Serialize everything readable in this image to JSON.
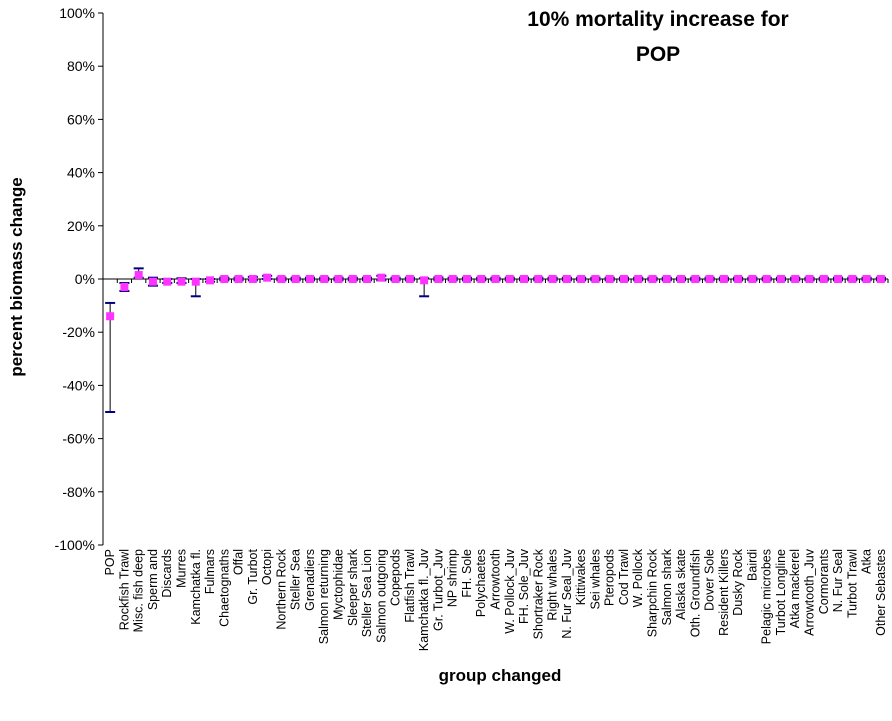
{
  "chart_data": {
    "type": "scatter",
    "title_lines": [
      "10% mortality increase for",
      "POP"
    ],
    "xlabel": "group changed",
    "ylabel": "percent biomass change",
    "ylim": [
      -100,
      100
    ],
    "yticks": [
      "100%",
      "80%",
      "60%",
      "40%",
      "20%",
      "0%",
      "-20%",
      "-40%",
      "-60%",
      "-80%",
      "-100%"
    ],
    "ytick_values": [
      100,
      80,
      60,
      40,
      20,
      0,
      -20,
      -40,
      -60,
      -80,
      -100
    ],
    "grid": false,
    "legend": "none",
    "colors": {
      "marker": "#ff33ff",
      "errorbar": "#000080",
      "axis": "#000000"
    },
    "categories": [
      "POP",
      "Rockfish Trawl",
      "Misc. fish deep",
      "Sperm and",
      "Discards",
      "Murres",
      "Kamchatka fl.",
      "Fulmars",
      "Chaetognaths",
      "Offal",
      "Gr. Turbot",
      "Octopi",
      "Northern Rock",
      "Steller Sea",
      "Grenadiers",
      "Salmon returning",
      "Myctophidae",
      "Sleeper shark",
      "Steller Sea Lion",
      "Salmon outgoing",
      "Copepods",
      "Flatfish Trawl",
      "Kamchatka fl._Juv",
      "Gr. Turbot_Juv",
      "NP shrimp",
      "FH. Sole",
      "Polychaetes",
      "Arrowtooth",
      "W. Pollock_Juv",
      "FH. Sole_Juv",
      "Shortraker Rock",
      "Right whales",
      "N. Fur Seal_Juv",
      "Kittiwakes",
      "Sei whales",
      "Pteropods",
      "Cod Trawl",
      "W. Pollock",
      "Sharpchin Rock",
      "Salmon shark",
      "Alaska skate",
      "Oth. Groundfish",
      "Dover Sole",
      "Resident Killers",
      "Dusky Rock",
      "Bairdi",
      "Pelagic microbes",
      "Turbot Longline",
      "Atka mackerel",
      "Arrowtooth_Juv",
      "Cormorants",
      "N. Fur Seal",
      "Turbot Trawl",
      "Atka",
      "Other Sebastes"
    ],
    "values": [
      -14,
      -3,
      1.5,
      -1,
      -1,
      -1,
      -1,
      -0.5,
      0,
      0,
      0,
      0.5,
      0,
      0,
      0,
      0,
      0,
      0,
      0,
      0.5,
      0,
      0,
      -0.5,
      0,
      0,
      0,
      0,
      0,
      0,
      0,
      0,
      0,
      0,
      0,
      0,
      0,
      0,
      0,
      0,
      0,
      0,
      0,
      0,
      0,
      0,
      0,
      0,
      0,
      0,
      0,
      0,
      0,
      0,
      0,
      0
    ],
    "err_low": [
      -50,
      -4.5,
      0.5,
      -2.5,
      -1.5,
      -1.5,
      -6.5,
      -1,
      -0.5,
      -0.5,
      -0.5,
      0,
      -0.5,
      -0.5,
      -0.5,
      -0.5,
      -0.5,
      -0.5,
      -0.5,
      -0.5,
      -0.5,
      -0.5,
      -6.5,
      -0.5,
      -0.5,
      -0.5,
      -0.5,
      -0.5,
      -0.5,
      -0.5,
      -0.5,
      -0.5,
      -0.5,
      -0.5,
      -0.5,
      -0.5,
      -0.5,
      -0.5,
      -0.5,
      -0.5,
      -0.5,
      -0.5,
      -0.5,
      -0.5,
      -0.5,
      -0.5,
      -0.5,
      -0.5,
      -0.5,
      -0.5,
      -0.5,
      -0.5,
      -0.5,
      -0.5,
      -0.5
    ],
    "err_high": [
      -9,
      -1.5,
      4,
      0.5,
      0,
      0.3,
      0,
      0,
      0.5,
      0.5,
      0.8,
      1.2,
      0.5,
      0.5,
      0.5,
      0.5,
      0.5,
      0.5,
      0.5,
      1.2,
      0.5,
      0.5,
      0.3,
      0.6,
      0.5,
      0.5,
      0.5,
      0.5,
      0.5,
      0.5,
      0.5,
      0.5,
      0.5,
      0.5,
      0.5,
      0.5,
      0.5,
      0.5,
      0.5,
      0.5,
      0.5,
      0.5,
      0.5,
      0.5,
      0.5,
      0.5,
      0.5,
      0.5,
      0.5,
      0.5,
      0.5,
      0.5,
      0.5,
      0.5,
      0.5
    ]
  }
}
